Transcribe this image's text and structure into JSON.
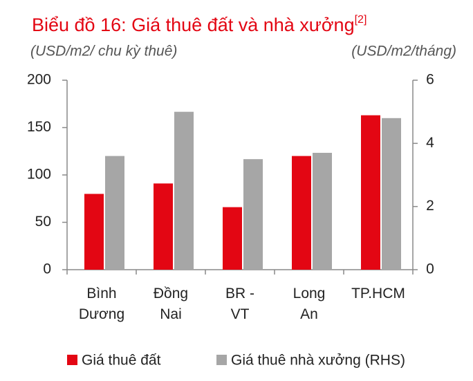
{
  "chart_data": {
    "type": "bar",
    "title": "Biểu đồ 16: Giá thuê đất và nhà xưởng",
    "title_note": "[2]",
    "y_label": "(USD/m2/ chu kỳ thuê)",
    "y2_label": "(USD/m2/tháng)",
    "categories": [
      "Bình\nDương",
      "Đồng\nNai",
      "BR -\nVT",
      "Long\nAn",
      "TP.HCM"
    ],
    "series": [
      {
        "name": "Giá thuê đất",
        "color": "#e30613",
        "values": [
          80,
          91,
          66,
          120,
          163
        ]
      },
      {
        "name": "Giá thuê nhà xưởng (RHS)",
        "color": "#a6a6a6",
        "axis": "y2",
        "values": [
          3.6,
          5.0,
          3.5,
          3.7,
          4.8
        ]
      }
    ],
    "ylim": [
      0,
      200
    ],
    "yticks": [
      0,
      50,
      100,
      150,
      200
    ],
    "y2lim": [
      0,
      6
    ],
    "y2ticks": [
      0,
      2,
      4,
      6
    ],
    "grid": false,
    "legend": "bottom"
  }
}
